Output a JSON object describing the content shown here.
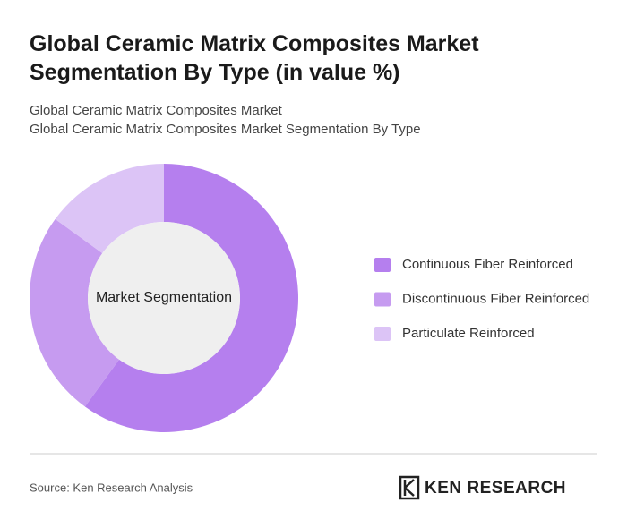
{
  "chart_data": {
    "type": "donut",
    "title": "Global Ceramic Matrix Composites Market Segmentation By Type (in value %)",
    "subtitle_lines": [
      "Global Ceramic Matrix Composites Market",
      "Global Ceramic Matrix Composites Market Segmentation By Type"
    ],
    "center_label": "Market Segmentation",
    "categories": [
      "Continuous Fiber Reinforced",
      "Discontinuous Fiber Reinforced",
      "Particulate Reinforced"
    ],
    "values": [
      60,
      25,
      15
    ],
    "colors": [
      "#b57fee",
      "#c69bf0",
      "#dcc4f6"
    ],
    "source": "Source: Ken Research Analysis",
    "brand": "KEN RESEARCH"
  }
}
